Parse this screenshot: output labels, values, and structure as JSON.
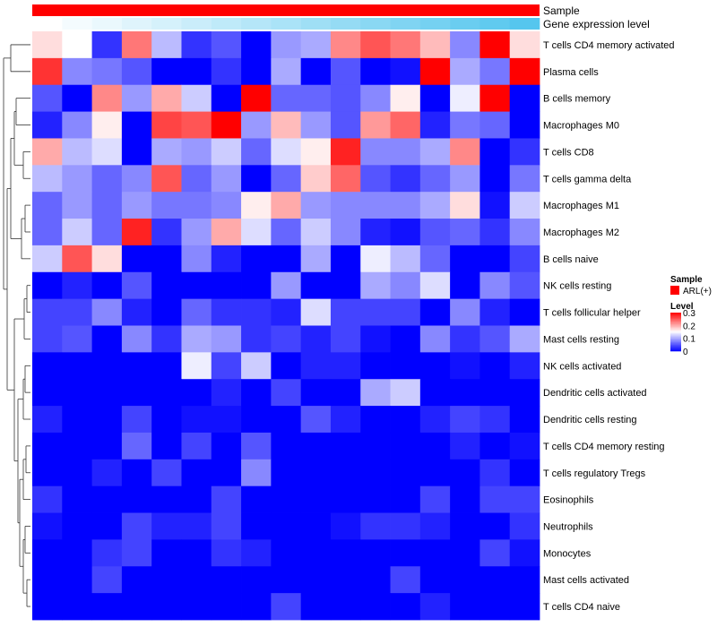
{
  "chart_data": {
    "type": "heatmap",
    "title": "",
    "tracks": [
      {
        "name": "Sample",
        "color": "#ff0000"
      },
      {
        "name": "Gene expression level",
        "gradient": [
          "#ffffff",
          "#55c6ee"
        ]
      }
    ],
    "num_columns": 17,
    "rows": [
      "T cells CD4 memory activated",
      "Plasma cells",
      "B cells memory",
      "Macrophages M0",
      "T cells CD8",
      "T cells gamma delta",
      "Macrophages M1",
      "Macrophages M2",
      "B cells naive",
      "NK cells resting",
      "T cells follicular helper",
      "Mast cells resting",
      "NK cells activated",
      "Dendritic cells activated",
      "Dendritic cells resting",
      "T cells CD4 memory resting",
      "T cells regulatory  Tregs",
      "Eosinophils",
      "Neutrophils",
      "Monocytes",
      "Mast cells activated",
      "T cells CD4 naive"
    ],
    "values": [
      [
        0.17,
        0.15,
        0.03,
        0.23,
        0.11,
        0.03,
        0.05,
        0.0,
        0.09,
        0.1,
        0.22,
        0.25,
        0.23,
        0.19,
        0.08,
        0.3,
        0.17
      ],
      [
        0.27,
        0.08,
        0.07,
        0.05,
        0.0,
        0.0,
        0.03,
        0.0,
        0.1,
        0.0,
        0.05,
        0.0,
        0.01,
        0.3,
        0.1,
        0.07,
        0.3
      ],
      [
        0.05,
        0.0,
        0.22,
        0.09,
        0.2,
        0.12,
        0.0,
        0.3,
        0.06,
        0.06,
        0.05,
        0.08,
        0.16,
        0.0,
        0.14,
        0.3,
        0.0
      ],
      [
        0.02,
        0.08,
        0.16,
        0.0,
        0.26,
        0.25,
        0.3,
        0.09,
        0.19,
        0.09,
        0.05,
        0.21,
        0.24,
        0.02,
        0.07,
        0.06,
        0.0
      ],
      [
        0.2,
        0.11,
        0.13,
        0.0,
        0.1,
        0.09,
        0.12,
        0.06,
        0.13,
        0.16,
        0.28,
        0.08,
        0.08,
        0.1,
        0.22,
        0.0,
        0.03
      ],
      [
        0.11,
        0.09,
        0.06,
        0.08,
        0.25,
        0.06,
        0.09,
        0.0,
        0.06,
        0.18,
        0.24,
        0.05,
        0.03,
        0.06,
        0.09,
        0.0,
        0.07
      ],
      [
        0.06,
        0.09,
        0.06,
        0.09,
        0.07,
        0.07,
        0.08,
        0.16,
        0.2,
        0.09,
        0.08,
        0.08,
        0.08,
        0.1,
        0.17,
        0.01,
        0.12
      ],
      [
        0.06,
        0.12,
        0.06,
        0.28,
        0.03,
        0.09,
        0.2,
        0.13,
        0.06,
        0.12,
        0.08,
        0.02,
        0.01,
        0.05,
        0.06,
        0.03,
        0.08
      ],
      [
        0.12,
        0.25,
        0.17,
        0.0,
        0.0,
        0.08,
        0.02,
        0.0,
        0.0,
        0.1,
        0.0,
        0.14,
        0.11,
        0.06,
        0.0,
        0.0,
        0.04
      ],
      [
        0.0,
        0.02,
        0.0,
        0.05,
        0.0,
        0.0,
        0.0,
        0.0,
        0.09,
        0.0,
        0.0,
        0.1,
        0.08,
        0.13,
        0.0,
        0.08,
        0.05
      ],
      [
        0.04,
        0.04,
        0.08,
        0.02,
        0.0,
        0.06,
        0.03,
        0.03,
        0.02,
        0.13,
        0.04,
        0.04,
        0.04,
        0.0,
        0.08,
        0.02,
        0.0
      ],
      [
        0.04,
        0.05,
        0.0,
        0.08,
        0.03,
        0.1,
        0.09,
        0.03,
        0.04,
        0.02,
        0.04,
        0.01,
        0.0,
        0.08,
        0.03,
        0.05,
        0.1
      ],
      [
        0.0,
        0.0,
        0.0,
        0.0,
        0.0,
        0.14,
        0.04,
        0.12,
        0.0,
        0.02,
        0.02,
        0.0,
        0.0,
        0.0,
        0.01,
        0.0,
        0.02
      ],
      [
        0.0,
        0.0,
        0.0,
        0.0,
        0.0,
        0.0,
        0.02,
        0.0,
        0.04,
        0.0,
        0.0,
        0.1,
        0.12,
        0.0,
        0.0,
        0.0,
        0.0
      ],
      [
        0.02,
        0.0,
        0.0,
        0.04,
        0.0,
        0.01,
        0.01,
        0.0,
        0.0,
        0.05,
        0.02,
        0.0,
        0.0,
        0.02,
        0.04,
        0.03,
        0.0
      ],
      [
        0.0,
        0.0,
        0.0,
        0.06,
        0.0,
        0.04,
        0.0,
        0.05,
        0.0,
        0.0,
        0.0,
        0.0,
        0.0,
        0.0,
        0.02,
        0.0,
        0.01
      ],
      [
        0.0,
        0.0,
        0.02,
        0.0,
        0.04,
        0.0,
        0.0,
        0.08,
        0.0,
        0.0,
        0.0,
        0.0,
        0.0,
        0.0,
        0.0,
        0.03,
        0.0
      ],
      [
        0.03,
        0.0,
        0.0,
        0.0,
        0.0,
        0.0,
        0.04,
        0.0,
        0.0,
        0.0,
        0.0,
        0.0,
        0.0,
        0.04,
        0.0,
        0.04,
        0.04
      ],
      [
        0.01,
        0.0,
        0.0,
        0.04,
        0.02,
        0.02,
        0.04,
        0.0,
        0.0,
        0.0,
        0.01,
        0.03,
        0.03,
        0.02,
        0.0,
        0.0,
        0.03
      ],
      [
        0.0,
        0.0,
        0.03,
        0.04,
        0.0,
        0.0,
        0.03,
        0.02,
        0.0,
        0.0,
        0.0,
        0.0,
        0.0,
        0.0,
        0.0,
        0.04,
        0.01
      ],
      [
        0.0,
        0.0,
        0.04,
        0.0,
        0.0,
        0.0,
        0.0,
        0.0,
        0.0,
        0.0,
        0.0,
        0.0,
        0.04,
        0.0,
        0.0,
        0.0,
        0.0
      ],
      [
        0.0,
        0.0,
        0.0,
        0.0,
        0.0,
        0.0,
        0.0,
        0.0,
        0.04,
        0.0,
        0.0,
        0.0,
        0.0,
        0.02,
        0.0,
        0.0,
        0.0
      ]
    ],
    "color_scale": {
      "min": 0,
      "mid": 0.15,
      "max": 0.3,
      "low": "#0000ff",
      "midColor": "#ffffff",
      "high": "#ff0000"
    },
    "legend": {
      "sample_title": "Sample",
      "sample_entry": "ARL(+)",
      "level_title": "Level",
      "ticks": [
        "0.3",
        "0.2",
        "0.1",
        "0"
      ]
    }
  }
}
